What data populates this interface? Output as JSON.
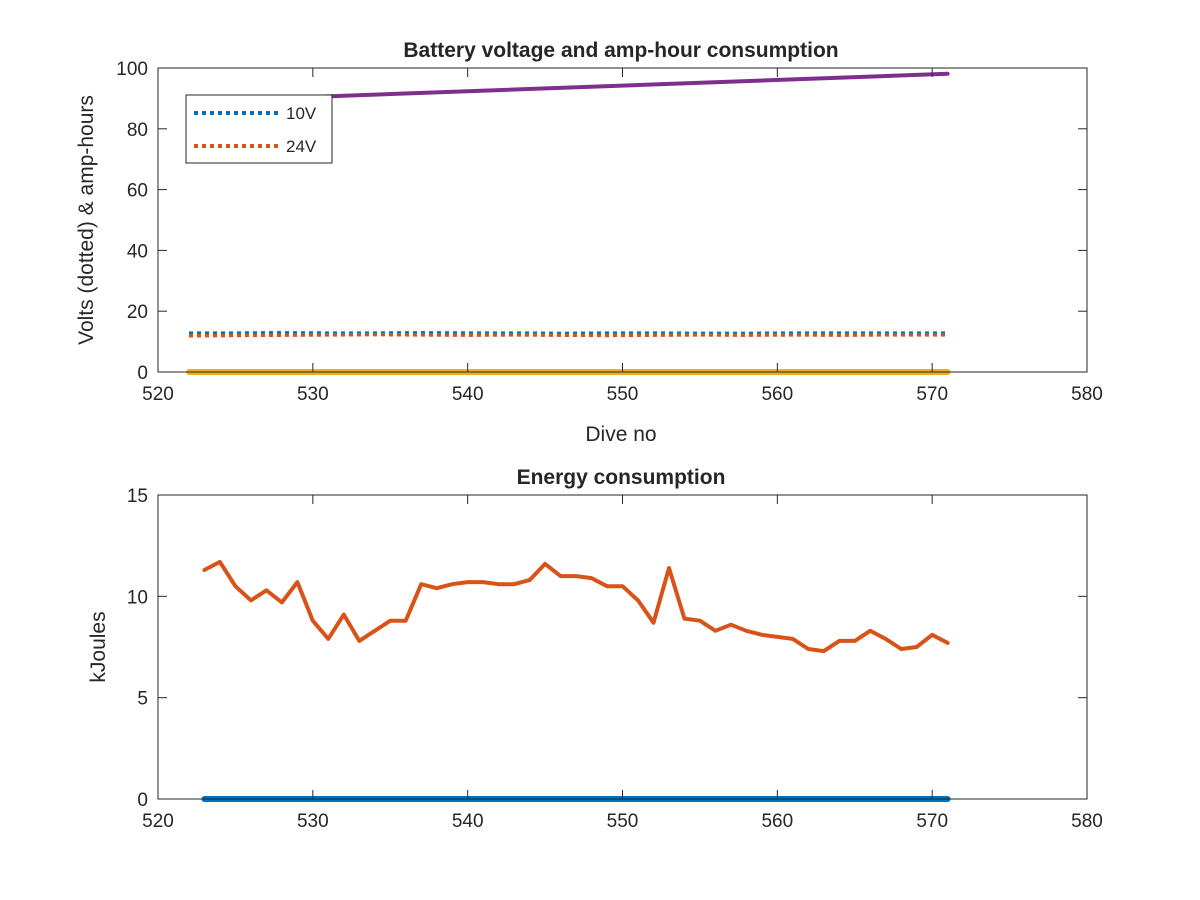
{
  "chart_data": [
    {
      "type": "line",
      "title": "Battery voltage and amp-hour consumption",
      "xlabel": "Dive no",
      "ylabel": "Volts (dotted) & amp-hours",
      "xlim": [
        520,
        580
      ],
      "ylim": [
        0,
        100
      ],
      "xticks": [
        "520",
        "530",
        "540",
        "550",
        "560",
        "570",
        "580"
      ],
      "yticks": [
        "0",
        "20",
        "40",
        "60",
        "80",
        "100"
      ],
      "legend": {
        "position": "top-left",
        "entries": [
          "10V",
          "24V"
        ]
      },
      "colors": {
        "10V": "#0072BD",
        "24V": "#D95319",
        "purple": "#7E2F8E",
        "yellow": "#EDB120"
      },
      "series": [
        {
          "name": "10V",
          "style": "dotted",
          "x": [
            522,
            525,
            528,
            531,
            534,
            537,
            540,
            543,
            546,
            549,
            552,
            555,
            558,
            561,
            564,
            567,
            571
          ],
          "y": [
            12.8,
            12.8,
            12.9,
            12.8,
            12.8,
            12.9,
            12.8,
            12.8,
            12.7,
            12.8,
            12.8,
            12.7,
            12.7,
            12.8,
            12.8,
            12.8,
            12.8
          ]
        },
        {
          "name": "24V",
          "style": "dotted",
          "x": [
            522,
            525,
            528,
            531,
            534,
            537,
            540,
            543,
            546,
            549,
            552,
            555,
            558,
            561,
            564,
            567,
            571
          ],
          "y": [
            11.9,
            12.0,
            12.1,
            12.2,
            12.3,
            12.2,
            12.1,
            12.2,
            12.1,
            12.0,
            12.1,
            12.2,
            12.1,
            12.2,
            12.1,
            12.2,
            12.2
          ]
        },
        {
          "style": "solid",
          "color": "purple",
          "x": [
            530,
            571
          ],
          "y": [
            90.5,
            98.1
          ]
        },
        {
          "style": "solid",
          "color": "yellow",
          "x": [
            522,
            571
          ],
          "y": [
            0,
            0
          ]
        }
      ]
    },
    {
      "type": "line",
      "title": "Energy consumption",
      "xlabel": "",
      "ylabel": "kJoules",
      "xlim": [
        520,
        580
      ],
      "ylim": [
        0,
        15
      ],
      "xticks": [
        "520",
        "530",
        "540",
        "550",
        "560",
        "570",
        "580"
      ],
      "yticks": [
        "0",
        "5",
        "10",
        "15"
      ],
      "colors": {
        "orange": "#D95319",
        "blue": "#0072BD"
      },
      "series": [
        {
          "style": "solid",
          "color": "orange",
          "x": [
            523,
            524,
            525,
            526,
            527,
            528,
            529,
            530,
            531,
            532,
            533,
            534,
            535,
            536,
            537,
            538,
            539,
            540,
            541,
            542,
            543,
            544,
            545,
            546,
            547,
            548,
            549,
            550,
            551,
            552,
            553,
            554,
            555,
            556,
            557,
            558,
            559,
            560,
            561,
            562,
            563,
            564,
            565,
            566,
            567,
            568,
            569,
            570,
            571
          ],
          "y": [
            11.3,
            11.7,
            10.5,
            9.8,
            10.3,
            9.7,
            10.7,
            8.8,
            7.9,
            9.1,
            7.8,
            8.3,
            8.8,
            8.8,
            10.6,
            10.4,
            10.6,
            10.7,
            10.7,
            10.6,
            10.6,
            10.8,
            11.6,
            11.0,
            11.0,
            10.9,
            10.5,
            10.5,
            9.8,
            8.7,
            11.4,
            8.9,
            8.8,
            8.3,
            8.6,
            8.3,
            8.1,
            8.0,
            7.9,
            7.4,
            7.3,
            7.8,
            7.8,
            8.3,
            7.9,
            7.4,
            7.5,
            8.1,
            7.7
          ]
        },
        {
          "style": "solid",
          "color": "blue",
          "x": [
            523,
            571
          ],
          "y": [
            0,
            0
          ]
        }
      ]
    }
  ]
}
